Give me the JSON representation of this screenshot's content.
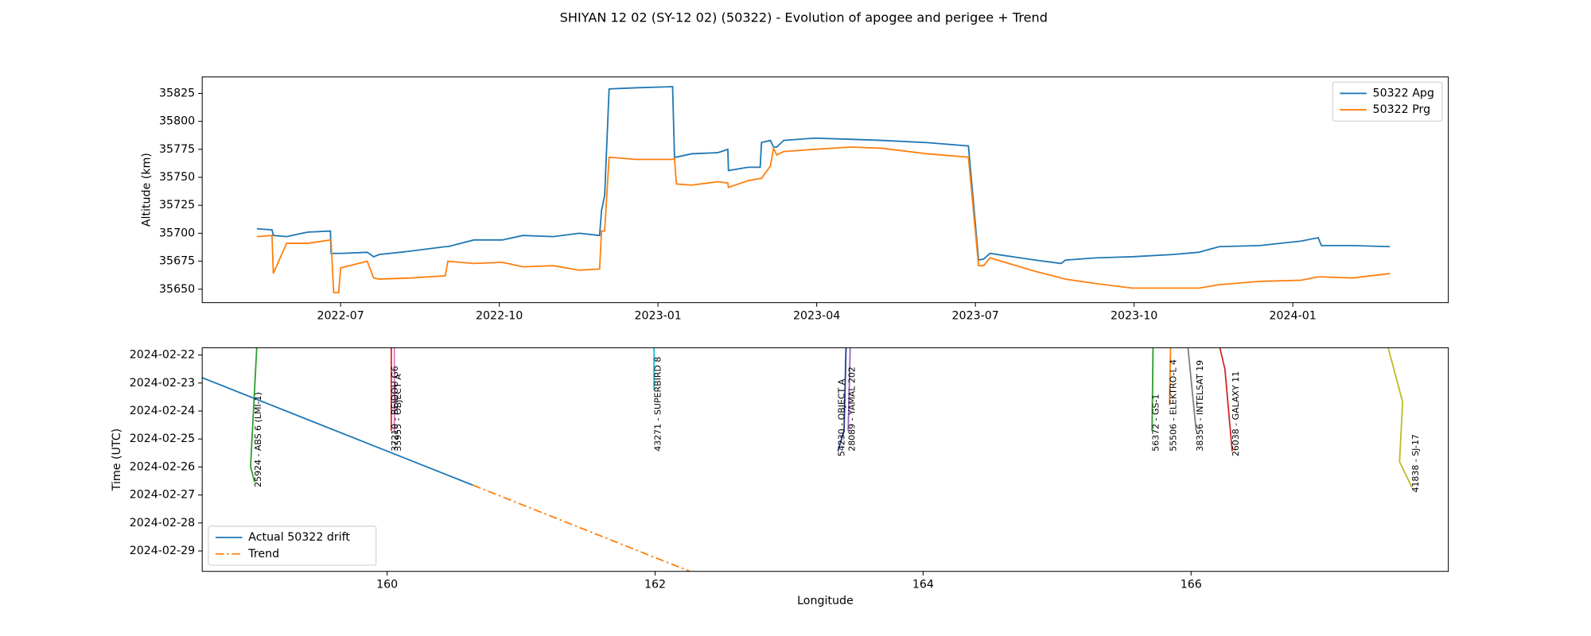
{
  "title": "SHIYAN 12 02 (SY-12 02) (50322) - Evolution of apogee and perigee + Trend",
  "chart_data": [
    {
      "type": "line",
      "ylabel": "Altitude (km)",
      "legend": "upper right",
      "xlim": [
        2022.282,
        2024.245
      ],
      "ylim": [
        35638,
        35839.7
      ],
      "xticks": [
        {
          "value": 2022.5,
          "label": "2022-07"
        },
        {
          "value": 2022.75,
          "label": "2022-10"
        },
        {
          "value": 2023.0,
          "label": "2023-01"
        },
        {
          "value": 2023.25,
          "label": "2023-04"
        },
        {
          "value": 2023.5,
          "label": "2023-07"
        },
        {
          "value": 2023.75,
          "label": "2023-10"
        },
        {
          "value": 2024.0,
          "label": "2024-01"
        }
      ],
      "yticks": [
        35650,
        35675,
        35700,
        35725,
        35750,
        35775,
        35800,
        35825
      ],
      "x": [
        2022.368,
        2022.392,
        2022.394,
        2022.415,
        2022.448,
        2022.484,
        2022.485,
        2022.489,
        2022.497,
        2022.5,
        2022.542,
        2022.552,
        2022.561,
        2022.61,
        2022.665,
        2022.669,
        2022.71,
        2022.755,
        2022.787,
        2022.835,
        2022.876,
        2022.908,
        2022.911,
        2022.916,
        2022.923,
        2022.965,
        2023.023,
        2023.026,
        2023.029,
        2023.053,
        2023.094,
        2023.11,
        2023.111,
        2023.142,
        2023.161,
        2023.163,
        2023.177,
        2023.182,
        2023.187,
        2023.198,
        2023.247,
        2023.303,
        2023.352,
        2023.424,
        2023.489,
        2023.505,
        2023.513,
        2023.523,
        2023.594,
        2023.635,
        2023.642,
        2023.69,
        2023.747,
        2023.811,
        2023.852,
        2023.884,
        2023.948,
        2024.013,
        2024.04,
        2024.045,
        2024.094,
        2024.153
      ],
      "series": [
        {
          "name": "50322 Apg",
          "color": "#1f77b4",
          "values": [
            35704,
            35703,
            35698,
            35697,
            35701,
            35702,
            35682,
            35682,
            35682,
            35682,
            35683,
            35679,
            35681,
            35684,
            35688,
            35688,
            35694,
            35694,
            35698,
            35697,
            35700,
            35698,
            35720,
            35734,
            35829,
            35830,
            35831,
            35768,
            35768,
            35771,
            35772,
            35775,
            35756,
            35759,
            35759,
            35781,
            35783,
            35777,
            35777,
            35783,
            35785,
            35784,
            35783,
            35781,
            35778,
            35676,
            35677,
            35682,
            35676,
            35673,
            35676,
            35678,
            35679,
            35681,
            35683,
            35688,
            35689,
            35693,
            35696,
            35689,
            35689,
            35688
          ]
        },
        {
          "name": "50322 Prg",
          "color": "#ff7f0e",
          "values": [
            35697,
            35698,
            35664,
            35691,
            35691,
            35694,
            35693,
            35647,
            35647,
            35669,
            35675,
            35660,
            35659,
            35660,
            35662,
            35675,
            35673,
            35674,
            35670,
            35671,
            35667,
            35668,
            35702,
            35702,
            35768,
            35766,
            35766,
            35767,
            35744,
            35743,
            35746,
            35745,
            35741,
            35747,
            35749,
            35749,
            35760,
            35776,
            35770,
            35773,
            35775,
            35777,
            35776,
            35771,
            35768,
            35671,
            35671,
            35678,
            35666,
            35660,
            35659,
            35655,
            35651,
            35651,
            35651,
            35654,
            35657,
            35658,
            35661,
            35661,
            35660,
            35664
          ]
        }
      ]
    },
    {
      "type": "line",
      "xlabel": "Longitude",
      "ylabel": "Time (UTC)",
      "legend": "lower left",
      "xlim": [
        158.62,
        167.92
      ],
      "ylim": [
        29.73,
        21.74
      ],
      "xticks": [
        160,
        162,
        164,
        166
      ],
      "yticks": [
        {
          "value": 22,
          "label": "2024-02-22"
        },
        {
          "value": 23,
          "label": "2024-02-23"
        },
        {
          "value": 24,
          "label": "2024-02-24"
        },
        {
          "value": 25,
          "label": "2024-02-25"
        },
        {
          "value": 26,
          "label": "2024-02-26"
        },
        {
          "value": 27,
          "label": "2024-02-27"
        },
        {
          "value": 28,
          "label": "2024-02-28"
        },
        {
          "value": 29,
          "label": "2024-02-29"
        }
      ],
      "series": [
        {
          "name": "Actual 50322 drift",
          "color": "#1f77b4",
          "dash": "solid",
          "x": [
            158.62,
            160.64
          ],
          "values": [
            22.81,
            26.65
          ]
        },
        {
          "name": "Trend",
          "color": "#ff7f0e",
          "dash": "dashdot",
          "x": [
            160.64,
            162.26
          ],
          "values": [
            26.65,
            29.73
          ]
        }
      ],
      "tracks": [
        {
          "name": "25924 - ABS 6 (LMI-1)",
          "color": "#2ca02c",
          "x": [
            159.027,
            158.981,
            159.011
          ],
          "values": [
            21.74,
            25.99,
            26.54
          ]
        },
        {
          "name": "37210 - BEIDOU G6",
          "color": "#d62728",
          "x": [
            160.031,
            160.031
          ],
          "values": [
            21.74,
            24.71
          ]
        },
        {
          "name": "35955 - OBJECT A",
          "color": "#e377c2",
          "x": [
            160.054,
            160.054
          ],
          "values": [
            21.74,
            24.71
          ]
        },
        {
          "name": "43271 - SUPERBIRD 8",
          "color": "#17becf",
          "x": [
            161.992,
            161.992
          ],
          "values": [
            21.74,
            23.25
          ]
        },
        {
          "name": "54230 - OBJECT A",
          "color": "#1f3b8f",
          "x": [
            163.425,
            163.41,
            163.364
          ],
          "values": [
            21.74,
            24.71,
            25.44
          ]
        },
        {
          "name": "28089 - YAMAL 202",
          "color": "#9467bd",
          "x": [
            163.456,
            163.441
          ],
          "values": [
            21.74,
            24.71
          ]
        },
        {
          "name": "56372 - GS-1",
          "color": "#2ca02c",
          "x": [
            165.716,
            165.709
          ],
          "values": [
            21.74,
            24.71
          ]
        },
        {
          "name": "55506 - ELEKTRO-L 4",
          "color": "#ff7f0e",
          "x": [
            165.847,
            165.839
          ],
          "values": [
            21.74,
            23.79
          ]
        },
        {
          "name": "38356 - INTELSAT 19",
          "color": "#7f7f7f",
          "x": [
            165.977,
            166.038
          ],
          "values": [
            21.74,
            24.71
          ]
        },
        {
          "name": "26038 - GALAXY 11",
          "color": "#d62728",
          "x": [
            166.215,
            166.253,
            166.307
          ],
          "values": [
            21.74,
            22.51,
            25.44
          ]
        },
        {
          "name": "41838 - SJ-17",
          "color": "#bcbd22",
          "x": [
            167.471,
            167.579,
            167.556,
            167.648
          ],
          "values": [
            21.74,
            23.68,
            25.81,
            26.73
          ]
        }
      ]
    }
  ]
}
